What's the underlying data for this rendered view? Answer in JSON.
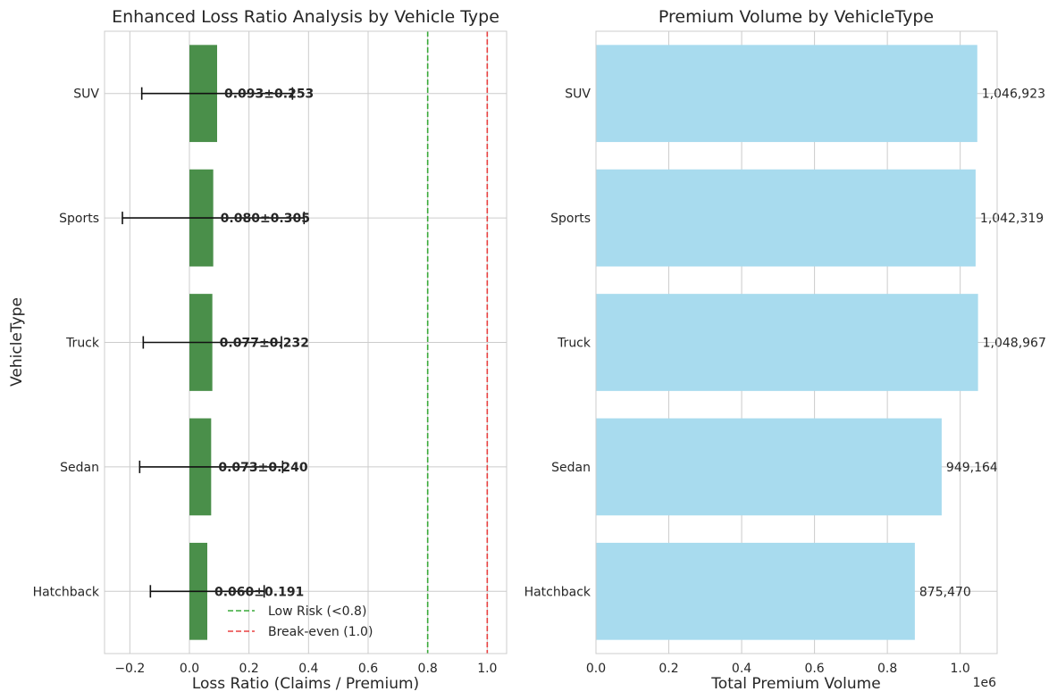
{
  "chart_data": [
    {
      "type": "bar",
      "orientation": "horizontal",
      "title": "Enhanced Loss Ratio Analysis by Vehicle Type",
      "xlabel": "Loss Ratio (Claims / Premium)",
      "ylabel": "VehicleType",
      "categories": [
        "Hatchback",
        "Sedan",
        "Truck",
        "Sports",
        "SUV"
      ],
      "values": [
        0.06,
        0.073,
        0.077,
        0.08,
        0.093
      ],
      "errors": [
        0.191,
        0.24,
        0.232,
        0.305,
        0.253
      ],
      "value_labels": [
        "0.060±0.191",
        "0.073±0.240",
        "0.077±0.232",
        "0.080±0.305",
        "0.093±0.253"
      ],
      "xlim": [
        -0.285,
        1.065
      ],
      "xticks": [
        -0.2,
        0.0,
        0.2,
        0.4,
        0.6,
        0.8,
        1.0
      ],
      "xtick_labels": [
        "−0.2",
        "0.0",
        "0.2",
        "0.4",
        "0.6",
        "0.8",
        "1.0"
      ],
      "bar_color": "#4a8f4a",
      "reference_lines": [
        {
          "x": 0.8,
          "label": "Low Risk (<0.8)",
          "color": "#3aaa3a",
          "style": "dashed"
        },
        {
          "x": 1.0,
          "label": "Break-even (1.0)",
          "color": "#e84040",
          "style": "dashed"
        }
      ],
      "legend_position": "lower-right",
      "grid": true
    },
    {
      "type": "bar",
      "orientation": "horizontal",
      "title": "Premium Volume by VehicleType",
      "xlabel": "Total Premium Volume",
      "ylabel": "",
      "categories": [
        "Hatchback",
        "Sedan",
        "Truck",
        "Sports",
        "SUV"
      ],
      "values": [
        875470,
        949164,
        1048967,
        1042319,
        1046923
      ],
      "value_labels": [
        "875,470",
        "949,164",
        "1,048,967",
        "1,042,319",
        "1,046,923"
      ],
      "xlim": [
        0,
        1101415
      ],
      "xticks": [
        0,
        200000,
        400000,
        600000,
        800000,
        1000000
      ],
      "xtick_labels": [
        "0.0",
        "0.2",
        "0.4",
        "0.6",
        "0.8",
        "1.0"
      ],
      "offset_label": "1e6",
      "bar_color": "#a8dbee",
      "grid": true
    }
  ]
}
